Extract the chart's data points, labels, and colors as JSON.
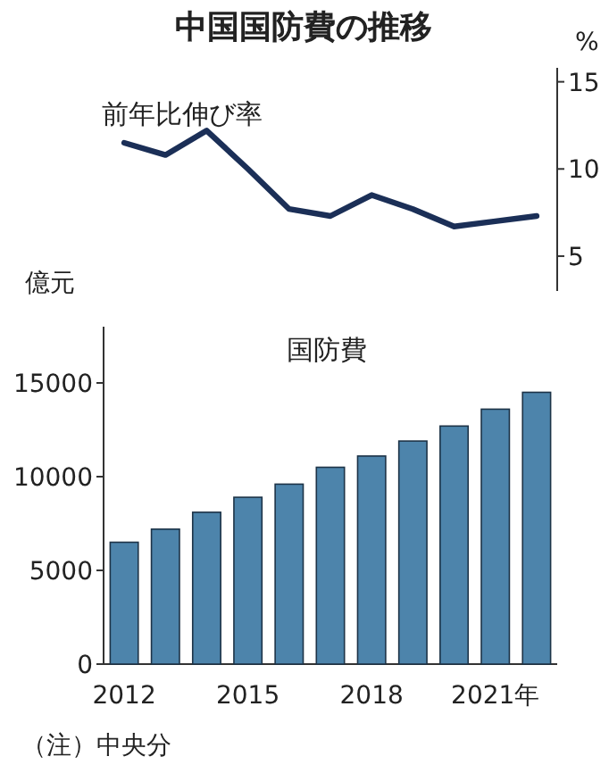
{
  "chart_data": [
    {
      "type": "line",
      "title": "中国国防費の推移",
      "subtitle": "前年比伸び率",
      "categories": [
        null,
        null,
        null,
        null,
        null,
        null,
        null,
        null,
        null,
        null,
        null
      ],
      "series": [
        {
          "color": "#1b2f57",
          "values": [
            11.5,
            10.8,
            12.2,
            10.0,
            7.7,
            7.3,
            8.5,
            7.7,
            6.7,
            7.0,
            7.3
          ]
        }
      ],
      "ylim": [
        3,
        15.8
      ],
      "yticks": [
        5,
        10,
        15
      ],
      "ylabel": "%",
      "grid": false
    },
    {
      "type": "bar",
      "title": "国防費",
      "ylabel": "億元",
      "categories": [
        "2012",
        null,
        null,
        "2015",
        null,
        null,
        "2018",
        null,
        null,
        "2021年",
        null
      ],
      "values": [
        6500,
        7200,
        8100,
        8900,
        9600,
        10500,
        11100,
        11900,
        12700,
        13600,
        14500
      ],
      "color": "#4d84ab",
      "ylim": [
        0,
        18000
      ],
      "yticks": [
        0,
        5000,
        10000,
        15000
      ],
      "grid": false,
      "annotations": [
        "（注）中央分"
      ]
    }
  ]
}
